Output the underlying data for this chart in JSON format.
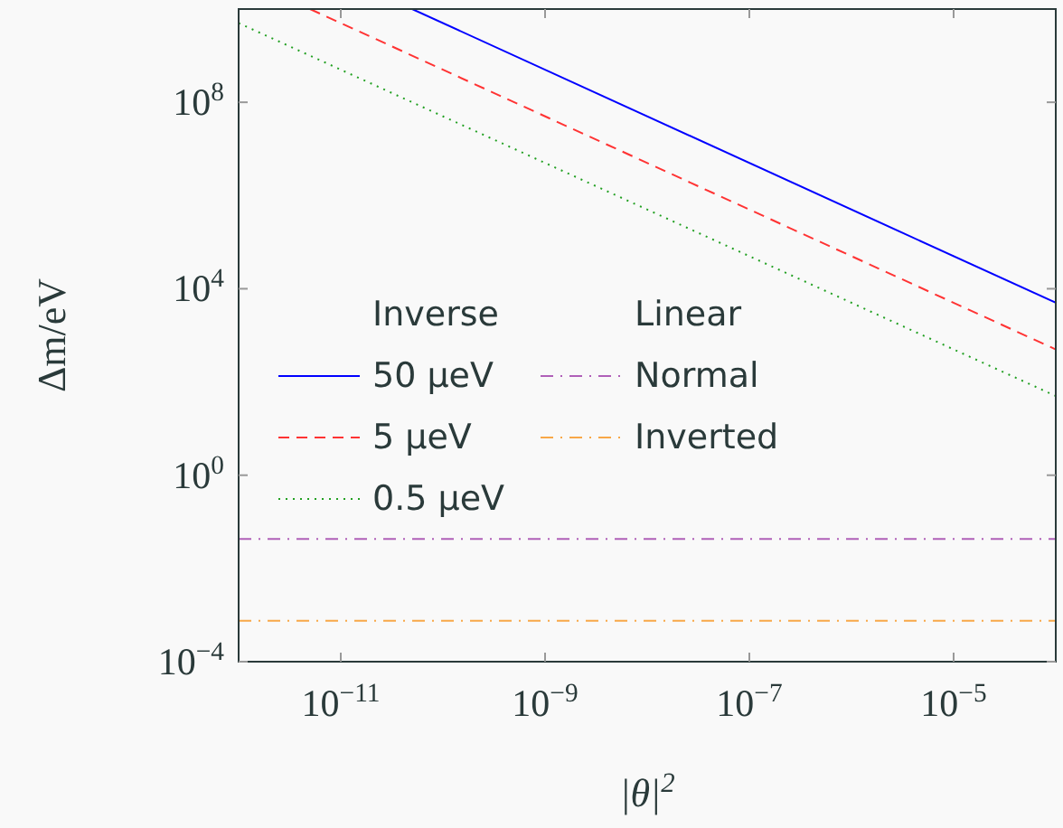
{
  "chart_data": {
    "type": "line",
    "xlabel": "|θ|$^{2}$",
    "ylabel": "Δm/eV",
    "log": "xy",
    "xlim": [
      1e-12,
      0.0001
    ],
    "ylim": [
      0.0001,
      10000000000.0
    ],
    "xticks": [
      {
        "value": 1e-11,
        "label": "10$^{−11}$"
      },
      {
        "value": 1e-09,
        "label": "10$^{−9}$"
      },
      {
        "value": 1e-07,
        "label": "10$^{−7}$"
      },
      {
        "value": 1e-05,
        "label": "10$^{−5}$"
      }
    ],
    "yticks": [
      {
        "value": 0.0001,
        "label": "10$^{−4}$"
      },
      {
        "value": 1,
        "label": "10$^{0}$"
      },
      {
        "value": 10000.0,
        "label": "10$^{4}$"
      },
      {
        "value": 100000000.0,
        "label": "10$^{8}$"
      }
    ],
    "legend": "left",
    "legend_title": "Inverse",
    "annotations": [
      "Linear"
    ],
    "grid": false,
    "series": [
      {
        "name": "50 μeV",
        "color": "#0000ff",
        "line_style": "solid",
        "x": [
          5e-11,
          0.0001
        ],
        "values": [
          10000000000.0,
          5000
        ]
      },
      {
        "name": "5 μeV",
        "color": "#ff3333",
        "line_style": "dashed",
        "x": [
          5e-12,
          0.0001
        ],
        "values": [
          10000000000.0,
          500
        ]
      },
      {
        "name": "0.5 μeV",
        "color": "#22a022",
        "line_style": "dotted",
        "x": [
          1e-12,
          0.0001
        ],
        "values": [
          5000000000.0,
          50
        ]
      },
      {
        "name": "Normal",
        "color": "#b060b8",
        "line_style": "dashdot",
        "x": [
          1e-12,
          0.0001
        ],
        "values": [
          0.043,
          0.043
        ]
      },
      {
        "name": "Inverted",
        "color": "#f8a848",
        "line_style": "dashdot",
        "x": [
          1e-12,
          0.0001
        ],
        "values": [
          0.00075,
          0.00075
        ]
      }
    ]
  }
}
